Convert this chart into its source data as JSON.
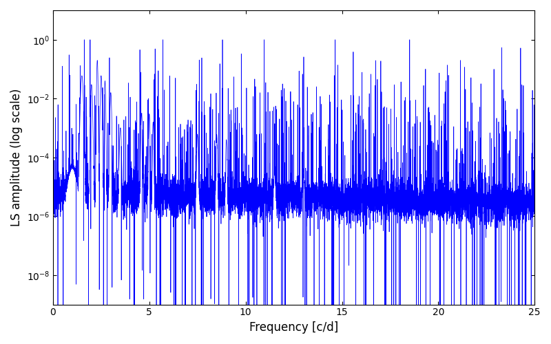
{
  "xlabel": "Frequency [c/d]",
  "ylabel": "LS amplitude (log scale)",
  "line_color": "#0000ff",
  "line_width": 0.5,
  "xlim": [
    0,
    25
  ],
  "ylim_log": [
    1e-09,
    10
  ],
  "yticks": [
    1e-08,
    1e-06,
    0.0001,
    0.01,
    1.0
  ],
  "xticks": [
    0,
    5,
    10,
    15,
    20,
    25
  ],
  "figsize": [
    8.0,
    5.0
  ],
  "dpi": 100,
  "background_color": "#ffffff",
  "seed": 12345,
  "n_points": 8000,
  "freq_max": 25.0
}
